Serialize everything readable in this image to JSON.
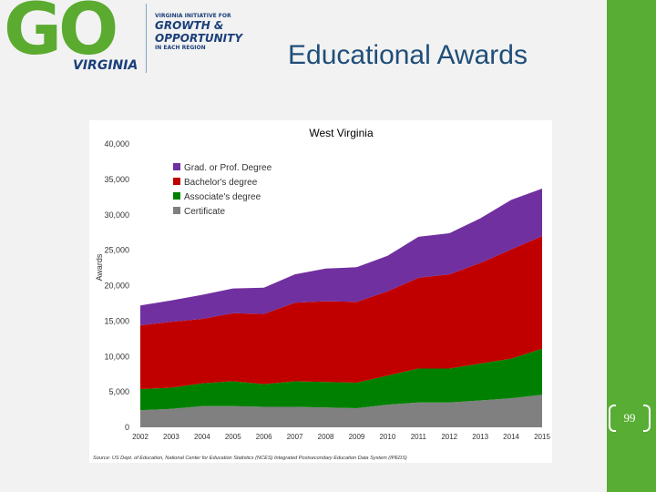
{
  "header": {
    "logo_go": "GO",
    "logo_virginia": "VIRGINIA",
    "logo_line1": "VIRGINIA INITIATIVE FOR",
    "logo_line2": "GROWTH &",
    "logo_line3": "OPPORTUNITY",
    "logo_line4": "IN EACH REGION",
    "title": "Educational Awards"
  },
  "page_number": "99",
  "colors": {
    "brand_green": "#58ad34",
    "title_blue": "#1f4e79",
    "grad": "#7030a0",
    "bachelor": "#c00000",
    "associate": "#008000",
    "certificate": "#808080"
  },
  "chart_data": {
    "type": "area",
    "stacked": true,
    "title": "West Virginia",
    "ylabel": "Awards",
    "source": "Source: US Dept. of Education, National Center for Education Statistics (NCES) Integrated Postsecondary Education Data System (IPEDS)",
    "x": [
      "2002",
      "2003",
      "2004",
      "2005",
      "2006",
      "2007",
      "2008",
      "2009",
      "2010",
      "2011",
      "2012",
      "2013",
      "2014",
      "2015"
    ],
    "x_tick_labels": [
      "2002",
      "2003",
      "2004",
      "2005",
      "2006",
      "2007",
      "2008",
      "2009",
      "2010",
      "2011",
      "2012",
      "2013",
      "2014",
      "2015"
    ],
    "ylim": [
      0,
      40000
    ],
    "y_tick_labels": [
      "0",
      "5,000",
      "10,000",
      "15,000",
      "20,000",
      "25,000",
      "30,000",
      "35,000",
      "40,000"
    ],
    "legend_position": "top-left",
    "series": [
      {
        "name": "Certificate",
        "color": "#808080",
        "values": [
          2400,
          2600,
          3000,
          3000,
          2900,
          2900,
          2800,
          2700,
          3200,
          3500,
          3500,
          3800,
          4100,
          4600
        ]
      },
      {
        "name": "Associate's degree",
        "color": "#008000",
        "values": [
          3000,
          3000,
          3200,
          3500,
          3200,
          3600,
          3600,
          3600,
          4100,
          4800,
          4800,
          5200,
          5600,
          6500
        ]
      },
      {
        "name": "Bachelor's degree",
        "color": "#c00000",
        "values": [
          9000,
          9300,
          9100,
          9600,
          9900,
          11100,
          11400,
          11400,
          11900,
          12800,
          13300,
          14200,
          15400,
          15900
        ]
      },
      {
        "name": "Grad. or Prof. Degree",
        "color": "#7030a0",
        "values": [
          2800,
          3000,
          3400,
          3500,
          3700,
          4000,
          4600,
          4900,
          5000,
          5800,
          5800,
          6300,
          7000,
          6700
        ]
      }
    ],
    "legend_order": [
      "Grad. or Prof. Degree",
      "Bachelor's degree",
      "Associate's degree",
      "Certificate"
    ]
  }
}
